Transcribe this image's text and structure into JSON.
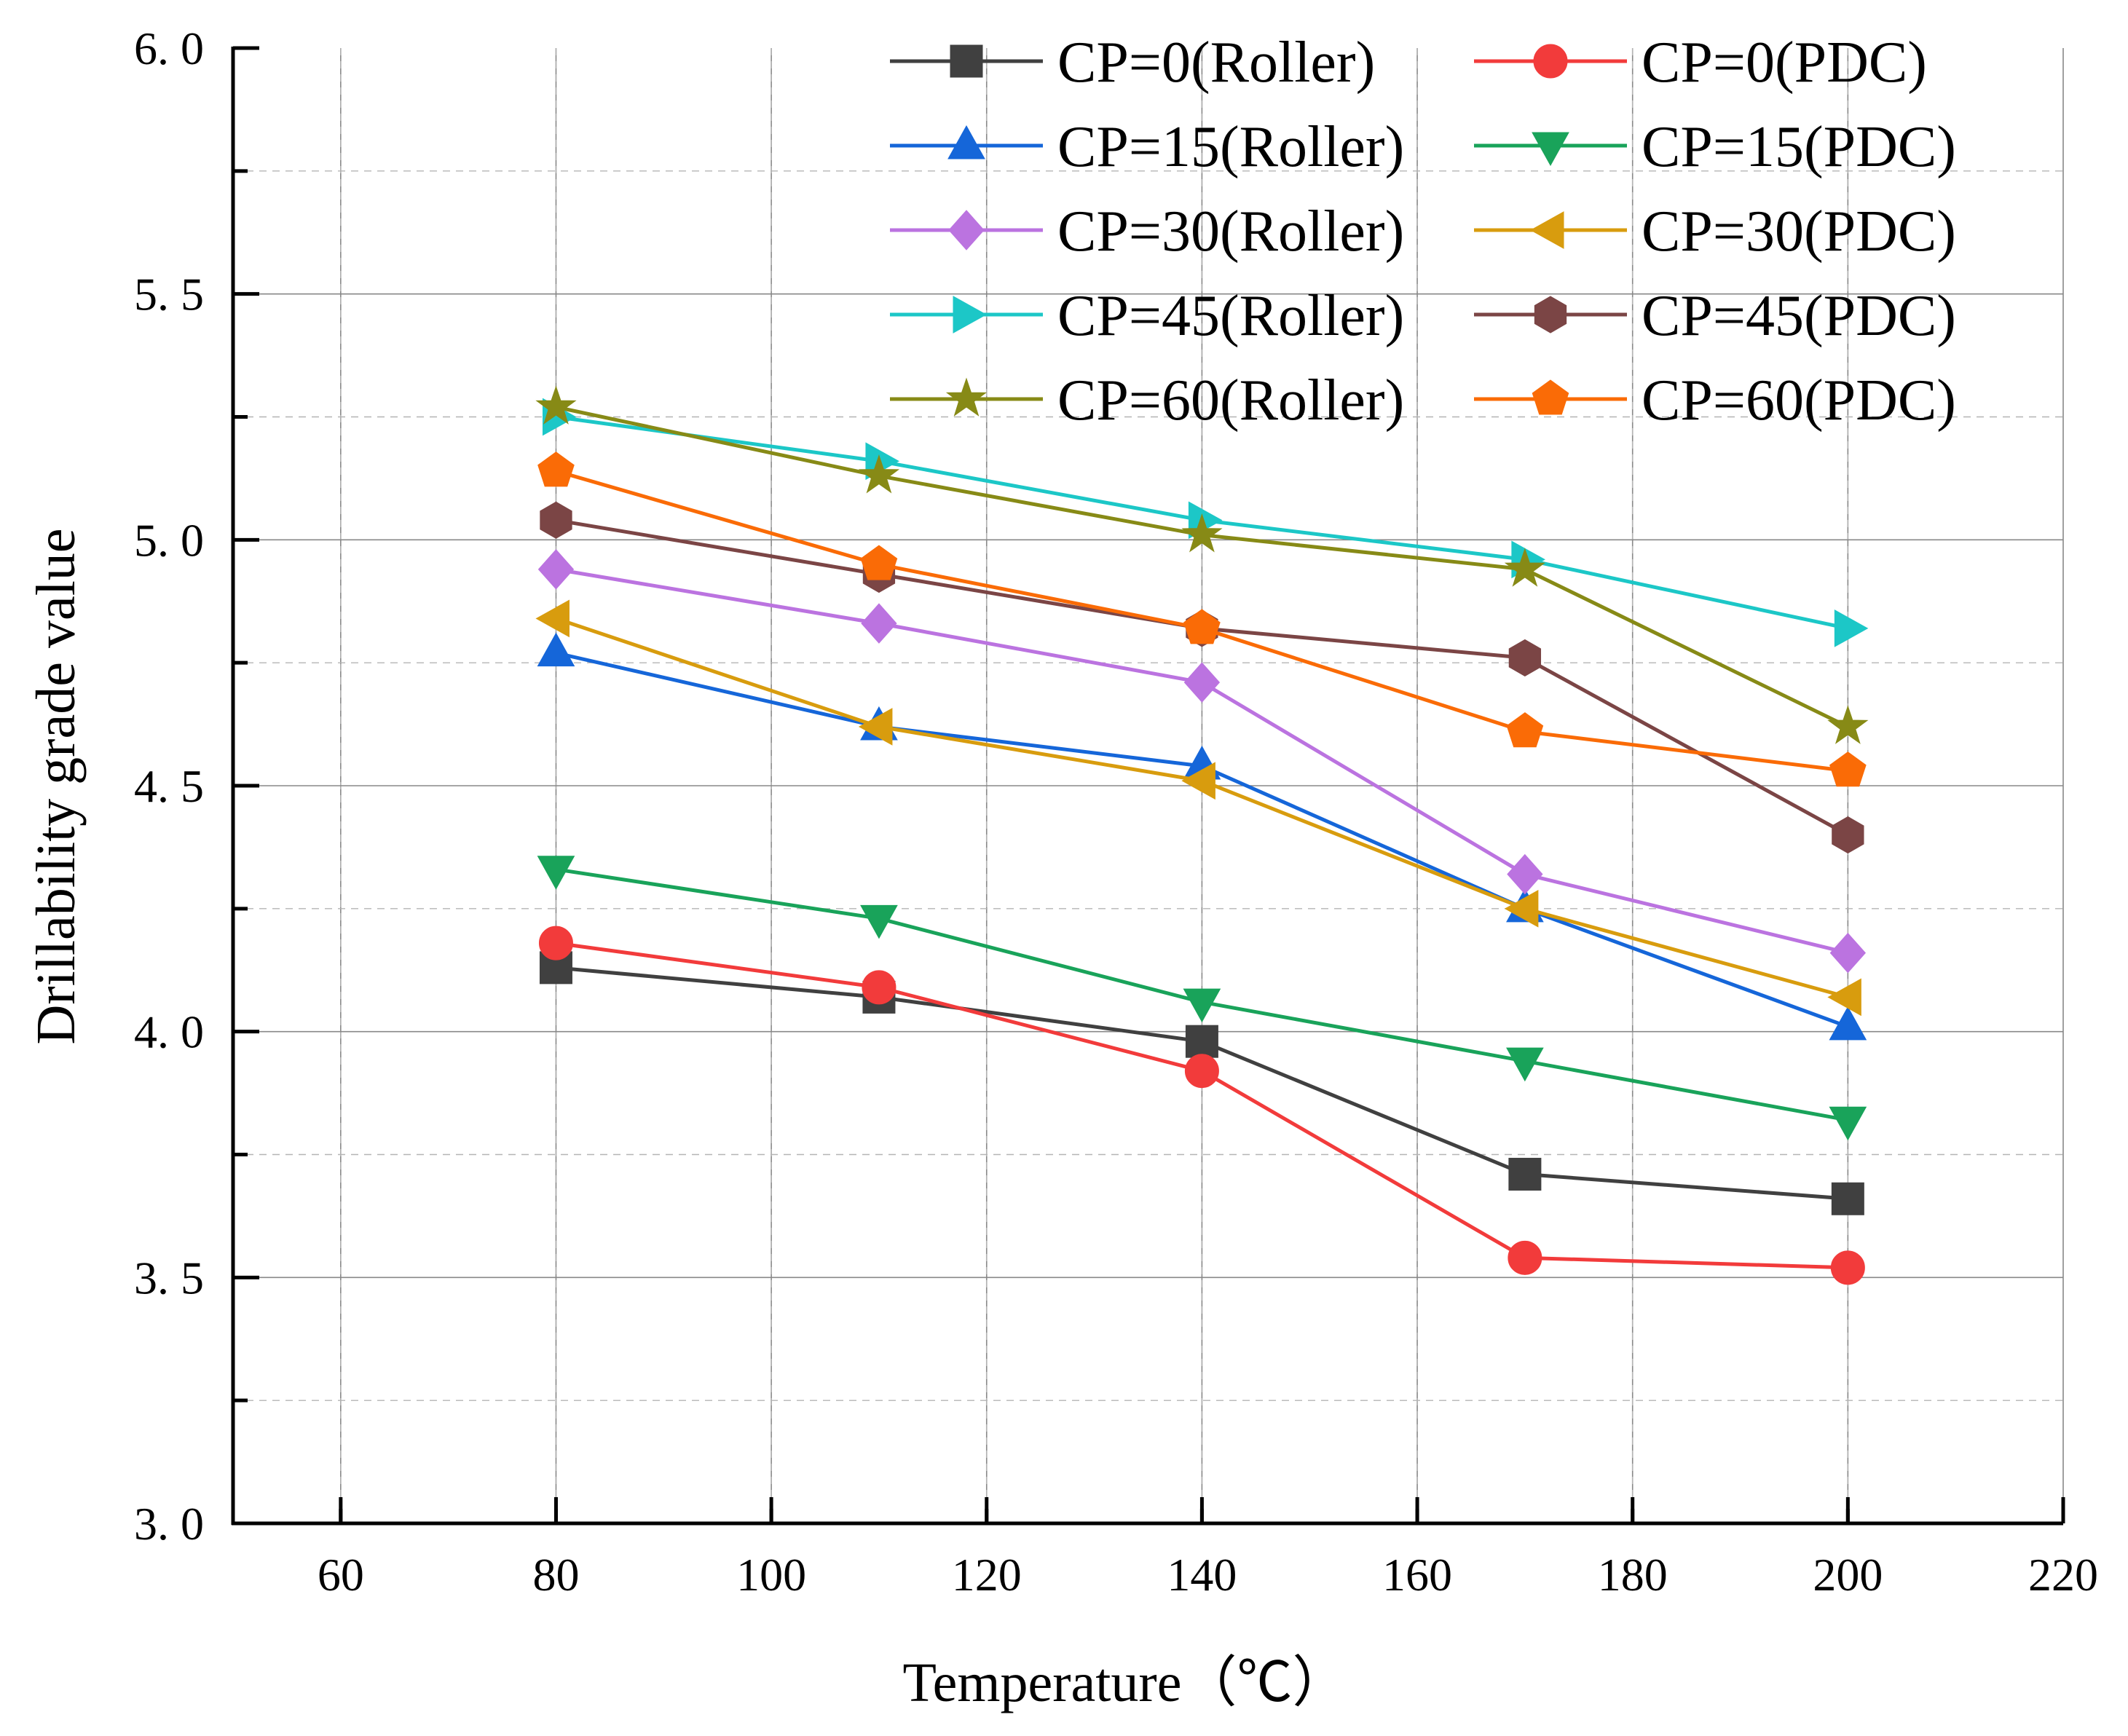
{
  "chart_data": {
    "type": "line",
    "title": "",
    "xlabel": "Temperature（℃）",
    "ylabel": "Drillability grade value",
    "xlim": [
      50,
      220
    ],
    "ylim": [
      3.0,
      6.0
    ],
    "x_ticks": [
      60,
      80,
      100,
      120,
      140,
      160,
      180,
      200,
      220
    ],
    "x_tick_labels": [
      "60",
      "80",
      "100",
      "120",
      "140",
      "160",
      "180",
      "200",
      "220"
    ],
    "y_ticks": [
      3.0,
      3.5,
      4.0,
      4.5,
      5.0,
      5.5,
      6.0
    ],
    "y_tick_labels": [
      "3. 0",
      "3. 5",
      "4. 0",
      "4. 5",
      "5. 0",
      "5. 5",
      "6. 0"
    ],
    "grid": true,
    "legend_position": "top-right",
    "x": [
      80,
      110,
      140,
      170,
      200
    ],
    "series": [
      {
        "name": "CP=0(Roller)",
        "values": [
          4.13,
          4.07,
          3.98,
          3.71,
          3.66
        ],
        "color": "#404040",
        "marker": "square"
      },
      {
        "name": "CP=0(PDC)",
        "values": [
          4.18,
          4.09,
          3.92,
          3.54,
          3.52
        ],
        "color": "#f23b3b",
        "marker": "circle"
      },
      {
        "name": "CP=15(Roller)",
        "values": [
          4.77,
          4.62,
          4.54,
          4.25,
          4.01
        ],
        "color": "#1566d9",
        "marker": "triangle-up"
      },
      {
        "name": "CP=15(PDC)",
        "values": [
          4.33,
          4.23,
          4.06,
          3.94,
          3.82
        ],
        "color": "#19a35a",
        "marker": "triangle-down"
      },
      {
        "name": "CP=30(Roller)",
        "values": [
          4.94,
          4.83,
          4.71,
          4.32,
          4.16
        ],
        "color": "#bb73e0",
        "marker": "diamond"
      },
      {
        "name": "CP=30(PDC)",
        "values": [
          4.84,
          4.62,
          4.51,
          4.25,
          4.07
        ],
        "color": "#d89c0e",
        "marker": "triangle-left"
      },
      {
        "name": "CP=45(Roller)",
        "values": [
          5.25,
          5.16,
          5.04,
          4.96,
          4.82
        ],
        "color": "#1cc7c7",
        "marker": "triangle-right"
      },
      {
        "name": "CP=45(PDC)",
        "values": [
          5.04,
          4.93,
          4.82,
          4.76,
          4.4
        ],
        "color": "#7b4545",
        "marker": "hexagon"
      },
      {
        "name": "CP=60(Roller)",
        "values": [
          5.27,
          5.13,
          5.01,
          4.94,
          4.62
        ],
        "color": "#878a16",
        "marker": "star"
      },
      {
        "name": "CP=60(PDC)",
        "values": [
          5.14,
          4.95,
          4.82,
          4.61,
          4.53
        ],
        "color": "#fa6b06",
        "marker": "pentagon"
      }
    ]
  }
}
